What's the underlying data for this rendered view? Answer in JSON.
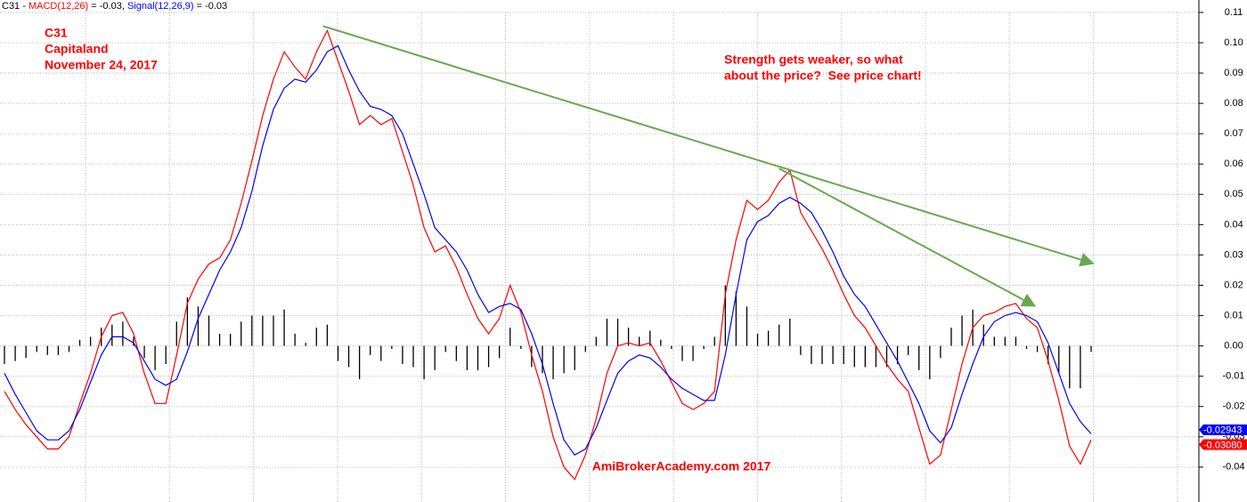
{
  "chart_data": {
    "type": "macd",
    "header_prefix": "C31 - ",
    "ylim": [
      -0.0515,
      0.1141
    ],
    "yticks": [
      {
        "value": 0.11,
        "label": "0.11"
      },
      {
        "value": 0.1,
        "label": "0.10"
      },
      {
        "value": 0.09,
        "label": "0.09"
      },
      {
        "value": 0.08,
        "label": "0.08"
      },
      {
        "value": 0.07,
        "label": "0.07"
      },
      {
        "value": 0.06,
        "label": "0.06"
      },
      {
        "value": 0.05,
        "label": "0.05"
      },
      {
        "value": 0.04,
        "label": "0.04"
      },
      {
        "value": 0.03,
        "label": "0.03"
      },
      {
        "value": 0.02,
        "label": "0.02"
      },
      {
        "value": 0.01,
        "label": "0.01"
      },
      {
        "value": 0,
        "label": "0.00"
      },
      {
        "value": -0.01,
        "label": "-0.01"
      },
      {
        "value": -0.02,
        "label": "-0.02"
      },
      {
        "value": -0.03,
        "label": "-0.03"
      },
      {
        "value": -0.04,
        "label": "-0.04"
      }
    ],
    "grid": true,
    "series": [
      {
        "name": "MACD(12,26)",
        "header_value": " = -0.03, ",
        "color": "#ff0000",
        "last_value": -0.0308,
        "last_label": "-0.03080",
        "values": [
          -0.015,
          -0.021,
          -0.026,
          -0.03,
          -0.034,
          -0.034,
          -0.03,
          -0.019,
          -0.009,
          0.003,
          0.01,
          0.011,
          0.004,
          -0.009,
          -0.019,
          -0.019,
          -0.003,
          0.014,
          0.022,
          0.027,
          0.029,
          0.035,
          0.047,
          0.061,
          0.076,
          0.088,
          0.097,
          0.092,
          0.088,
          0.097,
          0.104,
          0.094,
          0.084,
          0.073,
          0.076,
          0.073,
          0.075,
          0.064,
          0.053,
          0.039,
          0.031,
          0.033,
          0.026,
          0.017,
          0.009,
          0.004,
          0.009,
          0.02,
          0.011,
          -0.003,
          -0.015,
          -0.03,
          -0.04,
          -0.044,
          -0.036,
          -0.024,
          -0.009,
          0.0,
          0.001,
          0.0,
          0.001,
          -0.005,
          -0.012,
          -0.019,
          -0.021,
          -0.019,
          -0.015,
          0.017,
          0.035,
          0.048,
          0.045,
          0.048,
          0.054,
          0.058,
          0.044,
          0.038,
          0.032,
          0.025,
          0.017,
          0.01,
          0.006,
          0.0,
          -0.006,
          -0.011,
          -0.015,
          -0.027,
          -0.039,
          -0.036,
          -0.021,
          -0.006,
          0.006,
          0.01,
          0.011,
          0.013,
          0.014,
          0.009,
          0.006,
          -0.005,
          -0.018,
          -0.033,
          -0.039,
          -0.031
        ]
      },
      {
        "name": "Signal(12,26,9)",
        "header_value": " = -0.03",
        "color": "#0000ff",
        "last_value": -0.02943,
        "values": [
          -0.009,
          -0.016,
          -0.022,
          -0.028,
          -0.031,
          -0.031,
          -0.028,
          -0.021,
          -0.012,
          -0.003,
          0.003,
          0.003,
          0.001,
          -0.005,
          -0.011,
          -0.013,
          -0.011,
          -0.002,
          0.009,
          0.017,
          0.025,
          0.031,
          0.039,
          0.051,
          0.066,
          0.078,
          0.085,
          0.088,
          0.087,
          0.091,
          0.097,
          0.099,
          0.091,
          0.084,
          0.079,
          0.078,
          0.076,
          0.07,
          0.06,
          0.05,
          0.039,
          0.035,
          0.031,
          0.025,
          0.017,
          0.011,
          0.013,
          0.014,
          0.012,
          0.004,
          -0.006,
          -0.019,
          -0.031,
          -0.036,
          -0.034,
          -0.027,
          -0.018,
          -0.009,
          -0.005,
          -0.003,
          -0.004,
          -0.007,
          -0.011,
          -0.014,
          -0.016,
          -0.018,
          -0.018,
          -0.003,
          0.017,
          0.035,
          0.041,
          0.043,
          0.047,
          0.049,
          0.047,
          0.044,
          0.038,
          0.031,
          0.023,
          0.017,
          0.013,
          0.007,
          0.001,
          -0.005,
          -0.012,
          -0.019,
          -0.028,
          -0.032,
          -0.027,
          -0.016,
          -0.006,
          0.003,
          0.008,
          0.01,
          0.011,
          0.01,
          0.008,
          0.001,
          -0.009,
          -0.019,
          -0.025,
          -0.029
        ]
      }
    ],
    "histogram": {
      "color": "#000000",
      "values": [
        -0.006,
        -0.005,
        -0.004,
        -0.002,
        -0.003,
        -0.003,
        -0.002,
        0.002,
        0.003,
        0.006,
        0.007,
        0.008,
        0.003,
        -0.004,
        -0.008,
        -0.006,
        0.008,
        0.016,
        0.013,
        0.01,
        0.004,
        0.004,
        0.008,
        0.01,
        0.01,
        0.01,
        0.012,
        0.004,
        0.001,
        0.006,
        0.007,
        -0.005,
        -0.007,
        -0.011,
        -0.003,
        -0.005,
        -0.001,
        -0.006,
        -0.007,
        -0.011,
        -0.008,
        -0.002,
        -0.005,
        -0.008,
        -0.008,
        -0.007,
        -0.004,
        0.006,
        -0.001,
        -0.007,
        -0.009,
        -0.011,
        -0.009,
        -0.008,
        -0.002,
        0.003,
        0.009,
        0.009,
        0.006,
        0.003,
        0.005,
        0.002,
        -0.001,
        -0.005,
        -0.005,
        -0.001,
        0.003,
        0.02,
        0.018,
        0.013,
        0.004,
        0.005,
        0.007,
        0.009,
        -0.003,
        -0.006,
        -0.006,
        -0.006,
        -0.006,
        -0.007,
        -0.007,
        -0.007,
        -0.007,
        -0.006,
        -0.003,
        -0.008,
        -0.011,
        -0.004,
        0.006,
        0.01,
        0.012,
        0.007,
        0.003,
        0.003,
        0.003,
        -0.001,
        -0.002,
        -0.006,
        -0.009,
        -0.014,
        -0.014,
        -0.002
      ]
    },
    "trendlines": [
      {
        "color": "#6aa84f",
        "x": [
          29.6,
          101
        ],
        "y": [
          0.1055,
          0.0274
        ]
      },
      {
        "color": "#6aa84f",
        "x": [
          72.0,
          95.6
        ],
        "y": [
          0.0585,
          0.0135
        ]
      }
    ],
    "annotations": [
      {
        "text": "C31",
        "color": "#ff0000"
      },
      {
        "text": "Capitaland",
        "color": "#ff0000"
      },
      {
        "text": "November 24, 2017",
        "color": "#ff0000"
      },
      {
        "text": "Strength gets weaker, so what",
        "color": "#ff0000"
      },
      {
        "text": "about the price?  See price chart!",
        "color": "#ff0000"
      },
      {
        "text": "AmiBrokerAcademy.com 2017",
        "color": "#ff0000"
      }
    ]
  }
}
